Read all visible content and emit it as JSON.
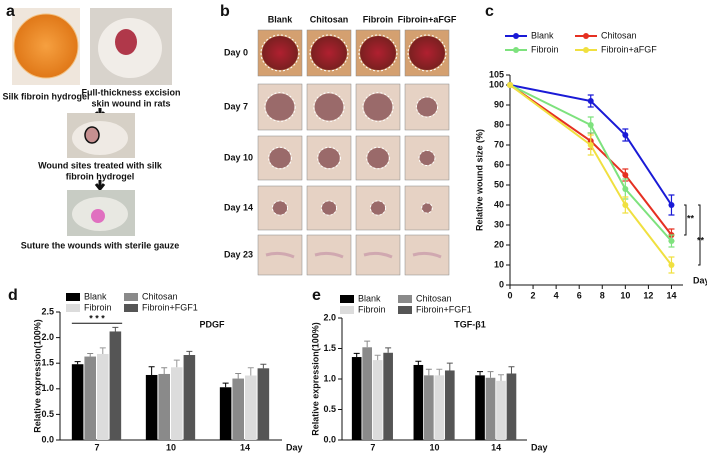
{
  "panel_a": {
    "label": "a",
    "captions": [
      [
        "Silk fibroin hydrogel"
      ],
      [
        "Full-thickness excision",
        "skin wound in rats"
      ],
      [
        "Wound sites treated with silk",
        "fibroin hydrogel"
      ],
      [
        "Suture the wounds with sterile gauze"
      ]
    ]
  },
  "panel_b": {
    "label": "b",
    "columns": [
      "Blank",
      "Chitosan",
      "Fibroin",
      "Fibroin+aFGF"
    ],
    "rows": [
      "Day 0",
      "Day 7",
      "Day 10",
      "Day 14",
      "Day 23"
    ]
  },
  "chart_data": [
    {
      "type": "line",
      "label": "c",
      "ylabel": "Relative wound size (%)",
      "xlabel": "Day",
      "x": [
        0,
        7,
        10,
        14
      ],
      "xlim": [
        0,
        15
      ],
      "xticks": [
        0,
        2,
        4,
        6,
        8,
        10,
        12,
        14
      ],
      "ylim": [
        0,
        105
      ],
      "yticks": [
        0,
        10,
        20,
        30,
        40,
        50,
        60,
        70,
        80,
        90,
        100,
        105
      ],
      "series": [
        {
          "name": "Blank",
          "color": "#1a1ad6",
          "values": [
            100,
            92,
            75,
            40
          ],
          "errors": [
            0,
            3,
            3,
            5
          ]
        },
        {
          "name": "Chitosan",
          "color": "#e53022",
          "values": [
            100,
            72,
            55,
            25
          ],
          "errors": [
            0,
            4,
            3,
            3
          ]
        },
        {
          "name": "Fibroin",
          "color": "#7ee27e",
          "values": [
            100,
            80,
            48,
            22
          ],
          "errors": [
            0,
            4,
            5,
            3
          ]
        },
        {
          "name": "Fibroin+aFGF",
          "color": "#f0e040",
          "values": [
            100,
            70,
            40,
            10
          ],
          "errors": [
            0,
            5,
            4,
            4
          ]
        }
      ],
      "annotations": [
        "**",
        "**"
      ]
    },
    {
      "type": "bar",
      "label": "d",
      "title": "PDGF",
      "ylabel": "Relative expression(100%)",
      "xlabel": "Day",
      "categories": [
        "7",
        "10",
        "14"
      ],
      "ylim": [
        0,
        2.5
      ],
      "yticks": [
        {
          "value": 0,
          "label": "0.0"
        },
        0.5,
        {
          "value": 1,
          "label": "1.0"
        },
        1.5,
        {
          "value": 2,
          "label": "2.0"
        },
        2.5
      ],
      "series": [
        {
          "name": "Blank",
          "color": "#000000",
          "values": [
            1.48,
            1.27,
            1.03
          ],
          "errors": [
            0.05,
            0.16,
            0.08
          ]
        },
        {
          "name": "Chitosan",
          "color": "#8a8a8a",
          "values": [
            1.63,
            1.29,
            1.2
          ],
          "errors": [
            0.06,
            0.12,
            0.1
          ]
        },
        {
          "name": "Fibroin",
          "color": "#dcdcdc",
          "values": [
            1.68,
            1.42,
            1.26
          ],
          "errors": [
            0.12,
            0.14,
            0.15
          ]
        },
        {
          "name": "Fibroin+FGF1",
          "color": "#555555",
          "values": [
            2.12,
            1.66,
            1.4
          ],
          "errors": [
            0.08,
            0.07,
            0.08
          ]
        }
      ],
      "annotations": [
        "* * *"
      ]
    },
    {
      "type": "bar",
      "label": "e",
      "title": "TGF-β1",
      "ylabel": "Relative expression(100%)",
      "xlabel": "Day",
      "categories": [
        "7",
        "10",
        "14"
      ],
      "ylim": [
        0,
        2
      ],
      "yticks": [
        {
          "value": 0,
          "label": "0.0"
        },
        0.5,
        {
          "value": 1,
          "label": "1.0"
        },
        1.5,
        {
          "value": 2,
          "label": "2.0"
        }
      ],
      "series": [
        {
          "name": "Blank",
          "color": "#000000",
          "values": [
            1.36,
            1.23,
            1.06
          ],
          "errors": [
            0.06,
            0.06,
            0.06
          ]
        },
        {
          "name": "Chitosan",
          "color": "#8a8a8a",
          "values": [
            1.52,
            1.06,
            1.02
          ],
          "errors": [
            0.1,
            0.1,
            0.1
          ]
        },
        {
          "name": "Fibroin",
          "color": "#dcdcdc",
          "values": [
            1.31,
            1.06,
            0.97
          ],
          "errors": [
            0.08,
            0.1,
            0.1
          ]
        },
        {
          "name": "Fibroin+FGF1",
          "color": "#555555",
          "values": [
            1.43,
            1.14,
            1.09
          ],
          "errors": [
            0.08,
            0.12,
            0.11
          ]
        }
      ]
    }
  ]
}
